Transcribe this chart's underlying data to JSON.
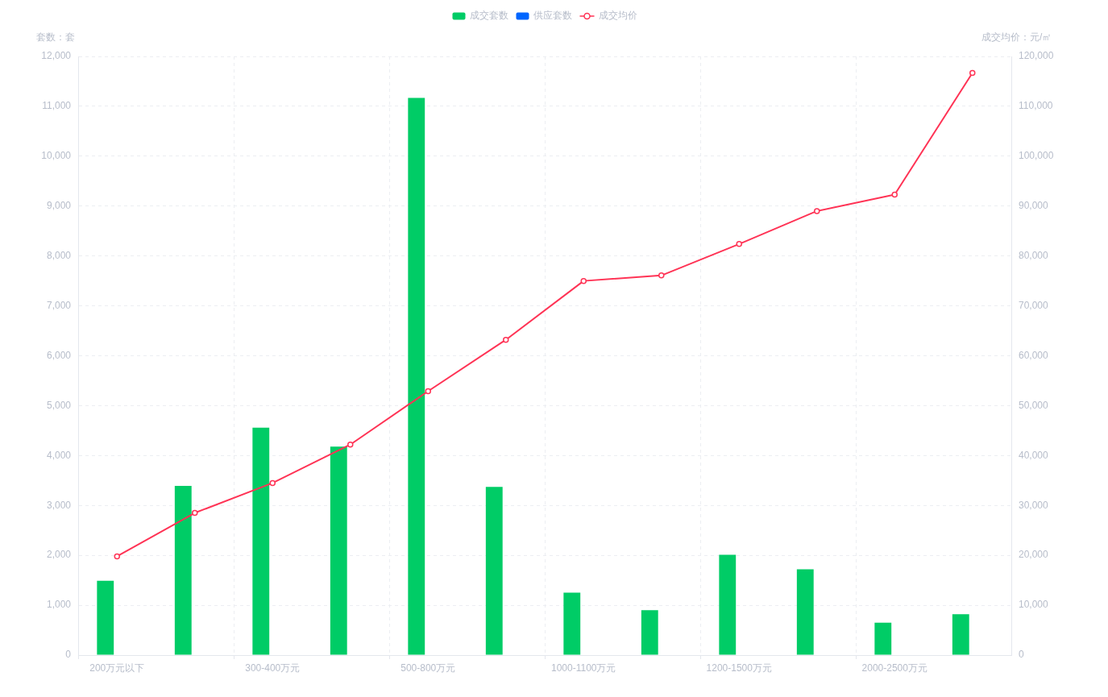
{
  "chart_data": {
    "type": "bar",
    "categories": [
      "200万元以下",
      null,
      "300-400万元",
      null,
      "500-800万元",
      null,
      "1000-1100万元",
      null,
      "1200-1500万元",
      null,
      "2000-2500万元",
      null
    ],
    "series": [
      {
        "name": "成交套数",
        "color": "#00cc66",
        "values": [
          1490,
          3390,
          4560,
          4180,
          11170,
          3370,
          1250,
          900,
          2010,
          1720,
          650,
          820
        ]
      },
      {
        "name": "供应套数",
        "color": "#0066ff",
        "values": [
          null,
          null,
          null,
          null,
          null,
          null,
          null,
          null,
          null,
          null,
          null,
          null
        ]
      },
      {
        "name": "成交均价",
        "type": "line",
        "axis": "y2",
        "color": "#ff3355",
        "marker": "circle",
        "values": [
          19800,
          28500,
          34500,
          42200,
          52900,
          63200,
          75000,
          76100,
          82400,
          89000,
          92300,
          116700
        ]
      }
    ],
    "ylabel": "套数：套",
    "y2label": "成交均价：元/㎡",
    "ylim": [
      0,
      12000
    ],
    "yticks": [
      0,
      {
        "value": 1000,
        "label": "1,000"
      },
      {
        "value": 2000,
        "label": "2,000"
      },
      {
        "value": 3000,
        "label": "3,000"
      },
      {
        "value": 4000,
        "label": "4,000"
      },
      {
        "value": 5000,
        "label": "5,000"
      },
      {
        "value": 6000,
        "label": "6,000"
      },
      {
        "value": 7000,
        "label": "7,000"
      },
      {
        "value": 8000,
        "label": "8,000"
      },
      {
        "value": 9000,
        "label": "9,000"
      },
      {
        "value": 10000,
        "label": "10,000"
      },
      {
        "value": 11000,
        "label": "11,000"
      },
      {
        "value": 12000,
        "label": "12,000"
      }
    ],
    "y2lim": [
      0,
      120000
    ],
    "y2ticks": [
      0,
      {
        "value": 10000,
        "label": "10,000"
      },
      {
        "value": 20000,
        "label": "20,000"
      },
      {
        "value": 30000,
        "label": "30,000"
      },
      {
        "value": 40000,
        "label": "40,000"
      },
      {
        "value": 50000,
        "label": "50,000"
      },
      {
        "value": 60000,
        "label": "60,000"
      },
      {
        "value": 70000,
        "label": "70,000"
      },
      {
        "value": 80000,
        "label": "80,000"
      },
      {
        "value": 90000,
        "label": "90,000"
      },
      {
        "value": 100000,
        "label": "100,000"
      },
      {
        "value": 110000,
        "label": "110,000"
      },
      {
        "value": 120000,
        "label": "120,000"
      }
    ],
    "grid": true,
    "legend": "top"
  }
}
